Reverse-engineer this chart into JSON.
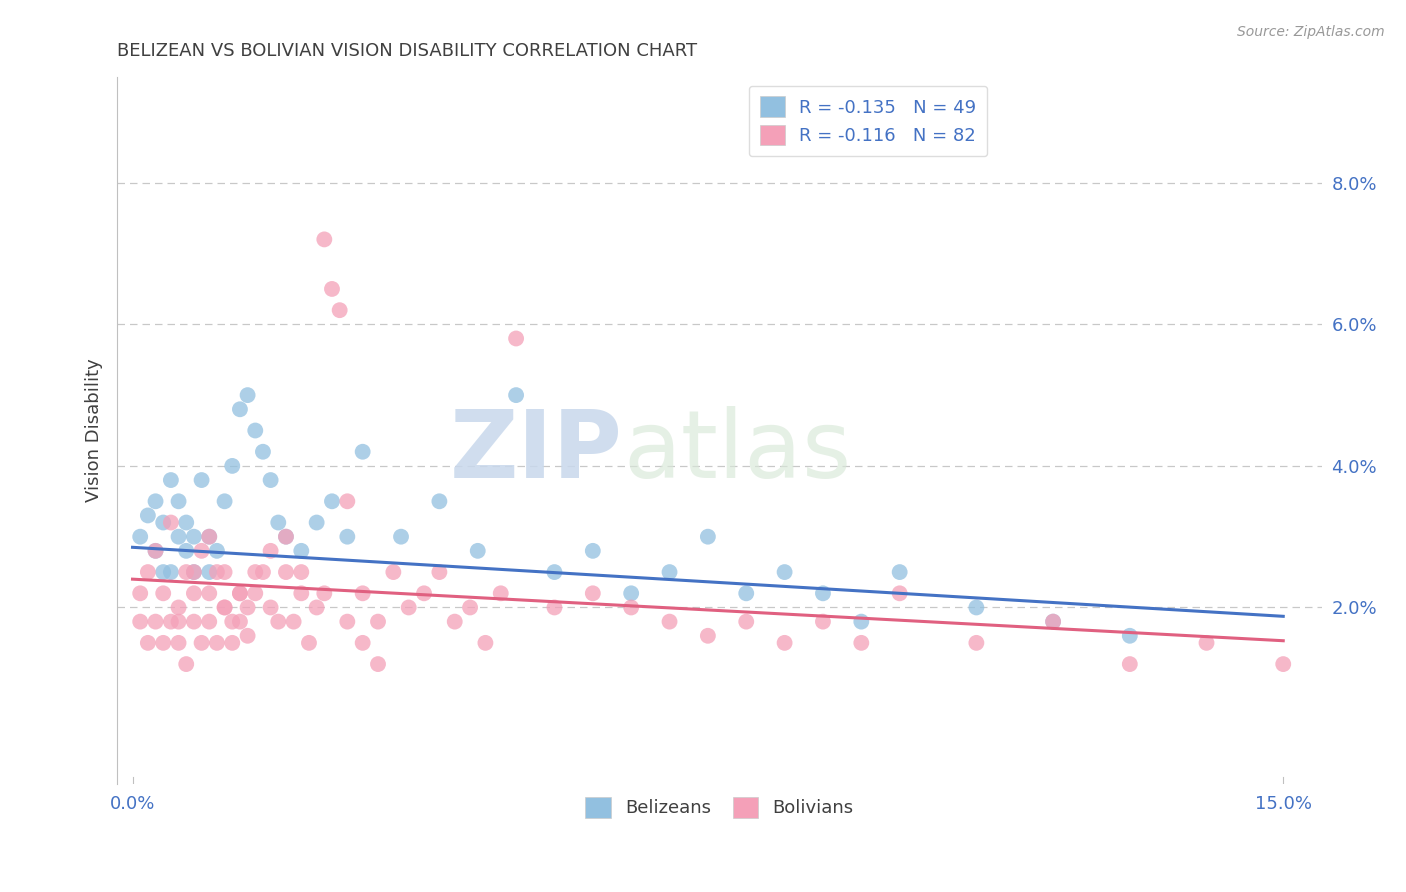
{
  "title": "BELIZEAN VS BOLIVIAN VISION DISABILITY CORRELATION CHART",
  "source": "Source: ZipAtlas.com",
  "ylabel": "Vision Disability",
  "xlim": [
    -0.002,
    0.155
  ],
  "ylim": [
    -0.005,
    0.095
  ],
  "yticks": [
    0.02,
    0.04,
    0.06,
    0.08
  ],
  "ytick_labels": [
    "2.0%",
    "4.0%",
    "6.0%",
    "8.0%"
  ],
  "xtick_positions": [
    0.0,
    0.15
  ],
  "xtick_labels": [
    "0.0%",
    "15.0%"
  ],
  "series": [
    {
      "name": "Belizeans",
      "color": "#92c0e0",
      "R": -0.135,
      "N": 49,
      "line_color": "#4472c4",
      "intercept": 0.0285,
      "slope": -0.065
    },
    {
      "name": "Bolivians",
      "color": "#f4a0b8",
      "R": -0.116,
      "N": 82,
      "line_color": "#e06080",
      "intercept": 0.024,
      "slope": -0.058
    }
  ],
  "legend_r_n": [
    {
      "R": "-0.135",
      "N": "49",
      "color": "#92c0e0"
    },
    {
      "R": "-0.116",
      "N": "82",
      "color": "#f4a0b8"
    }
  ],
  "belizean_x": [
    0.001,
    0.002,
    0.003,
    0.003,
    0.004,
    0.004,
    0.005,
    0.005,
    0.006,
    0.006,
    0.007,
    0.007,
    0.008,
    0.008,
    0.009,
    0.01,
    0.01,
    0.011,
    0.012,
    0.013,
    0.014,
    0.015,
    0.016,
    0.017,
    0.018,
    0.019,
    0.02,
    0.022,
    0.024,
    0.026,
    0.028,
    0.03,
    0.035,
    0.04,
    0.045,
    0.05,
    0.055,
    0.06,
    0.065,
    0.07,
    0.075,
    0.08,
    0.085,
    0.09,
    0.095,
    0.1,
    0.11,
    0.12,
    0.13
  ],
  "belizean_y": [
    0.03,
    0.033,
    0.028,
    0.035,
    0.032,
    0.025,
    0.038,
    0.025,
    0.03,
    0.035,
    0.028,
    0.032,
    0.03,
    0.025,
    0.038,
    0.03,
    0.025,
    0.028,
    0.035,
    0.04,
    0.048,
    0.05,
    0.045,
    0.042,
    0.038,
    0.032,
    0.03,
    0.028,
    0.032,
    0.035,
    0.03,
    0.042,
    0.03,
    0.035,
    0.028,
    0.05,
    0.025,
    0.028,
    0.022,
    0.025,
    0.03,
    0.022,
    0.025,
    0.022,
    0.018,
    0.025,
    0.02,
    0.018,
    0.016
  ],
  "bolivian_x": [
    0.001,
    0.001,
    0.002,
    0.002,
    0.003,
    0.003,
    0.004,
    0.004,
    0.005,
    0.005,
    0.006,
    0.006,
    0.007,
    0.007,
    0.008,
    0.008,
    0.009,
    0.009,
    0.01,
    0.01,
    0.011,
    0.011,
    0.012,
    0.012,
    0.013,
    0.013,
    0.014,
    0.014,
    0.015,
    0.015,
    0.016,
    0.017,
    0.018,
    0.019,
    0.02,
    0.021,
    0.022,
    0.023,
    0.024,
    0.025,
    0.026,
    0.027,
    0.028,
    0.03,
    0.032,
    0.034,
    0.036,
    0.038,
    0.04,
    0.042,
    0.044,
    0.046,
    0.048,
    0.05,
    0.055,
    0.06,
    0.065,
    0.07,
    0.075,
    0.08,
    0.085,
    0.09,
    0.095,
    0.1,
    0.11,
    0.12,
    0.13,
    0.14,
    0.15,
    0.02,
    0.018,
    0.016,
    0.014,
    0.012,
    0.022,
    0.025,
    0.028,
    0.03,
    0.032,
    0.01,
    0.008,
    0.006
  ],
  "bolivian_y": [
    0.022,
    0.018,
    0.025,
    0.015,
    0.028,
    0.018,
    0.022,
    0.015,
    0.032,
    0.018,
    0.02,
    0.015,
    0.025,
    0.012,
    0.022,
    0.018,
    0.028,
    0.015,
    0.022,
    0.018,
    0.025,
    0.015,
    0.02,
    0.025,
    0.018,
    0.015,
    0.022,
    0.018,
    0.02,
    0.016,
    0.022,
    0.025,
    0.02,
    0.018,
    0.025,
    0.018,
    0.022,
    0.015,
    0.02,
    0.072,
    0.065,
    0.062,
    0.035,
    0.022,
    0.018,
    0.025,
    0.02,
    0.022,
    0.025,
    0.018,
    0.02,
    0.015,
    0.022,
    0.058,
    0.02,
    0.022,
    0.02,
    0.018,
    0.016,
    0.018,
    0.015,
    0.018,
    0.015,
    0.022,
    0.015,
    0.018,
    0.012,
    0.015,
    0.012,
    0.03,
    0.028,
    0.025,
    0.022,
    0.02,
    0.025,
    0.022,
    0.018,
    0.015,
    0.012,
    0.03,
    0.025,
    0.018
  ],
  "watermark_zip": "ZIP",
  "watermark_atlas": "atlas",
  "background_color": "#ffffff",
  "grid_color": "#c8c8c8",
  "title_color": "#404040",
  "tick_color": "#4472c4",
  "legend_text_color": "#4472c4",
  "spine_color": "#c0c0c0"
}
